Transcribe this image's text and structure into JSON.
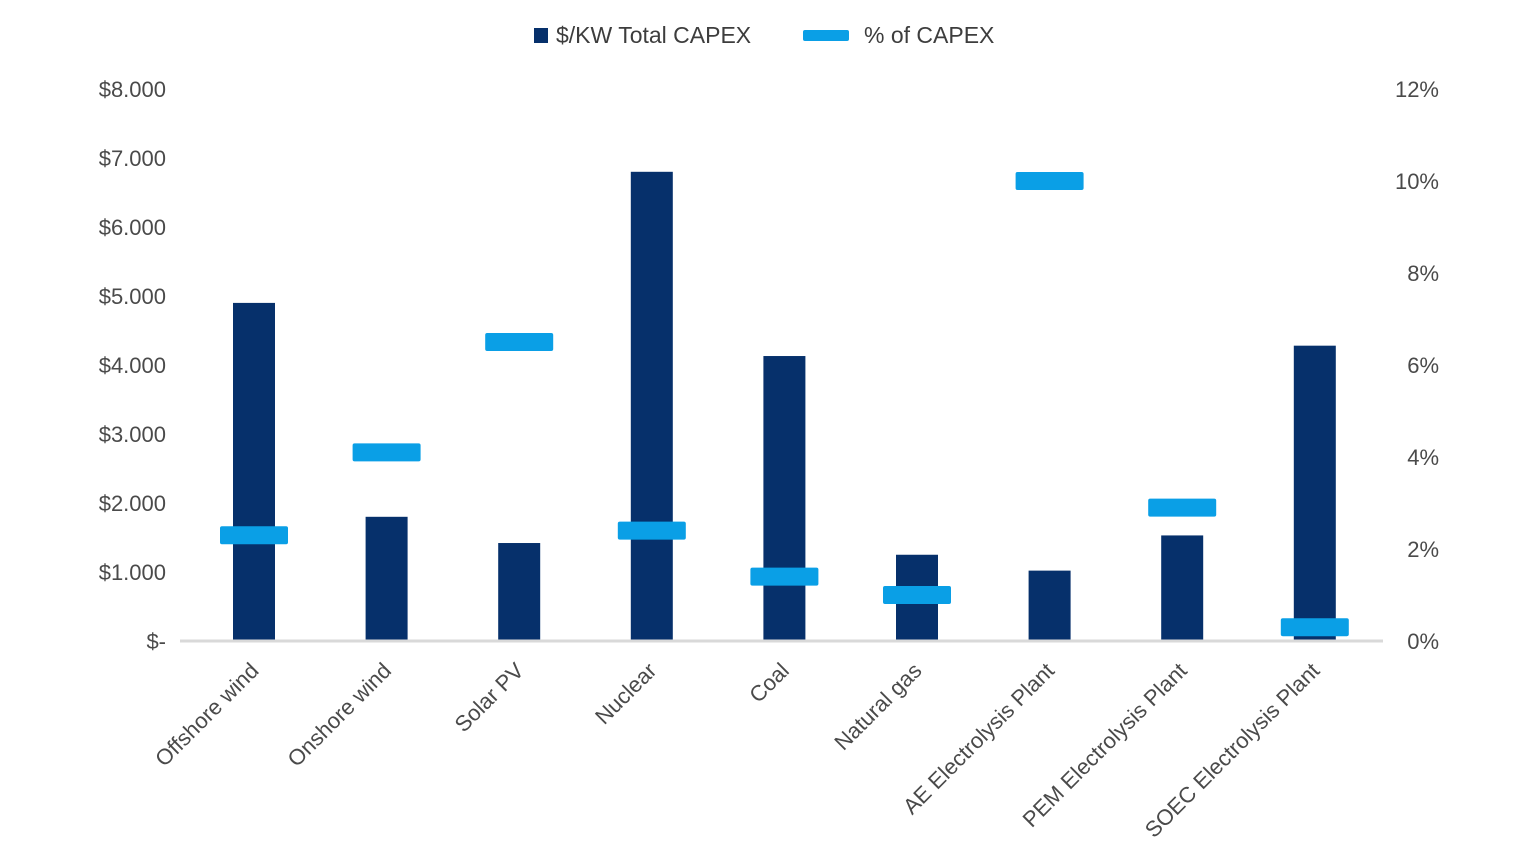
{
  "chart_data": {
    "type": "bar",
    "categories": [
      "Offshore wind",
      "Onshore wind",
      "Solar PV",
      "Nuclear",
      "Coal",
      "Natural gas",
      "AE Electrolysis Plant",
      "PEM Electrolysis Plant",
      "SOEC Electrolysis Plant"
    ],
    "series": [
      {
        "name": "$/KW Total CAPEX",
        "type": "bar",
        "axis": "left",
        "color": "#06306b",
        "values": [
          4900,
          1800,
          1420,
          6800,
          4130,
          1250,
          1020,
          1530,
          4280
        ]
      },
      {
        "name": "% of CAPEX",
        "type": "marker",
        "axis": "right",
        "color": "#0a9fe6",
        "values": [
          2.3,
          4.1,
          6.5,
          2.4,
          1.4,
          1.0,
          10.0,
          2.9,
          0.3
        ]
      }
    ],
    "y_left": {
      "ylim": [
        0,
        8000
      ],
      "ticks": [
        0,
        1000,
        2000,
        3000,
        4000,
        5000,
        6000,
        7000,
        8000
      ],
      "tick_labels": [
        "$-",
        "$1.000",
        "$2.000",
        "$3.000",
        "$4.000",
        "$5.000",
        "$6.000",
        "$7.000",
        "$8.000"
      ]
    },
    "y_right": {
      "ylim": [
        0,
        12
      ],
      "ticks": [
        0,
        2,
        4,
        6,
        8,
        10,
        12
      ],
      "tick_labels": [
        "0%",
        "2%",
        "4%",
        "6%",
        "8%",
        "10%",
        "12%"
      ]
    },
    "legend": {
      "position": "top-center",
      "entries": [
        "$/KW Total CAPEX",
        "% of CAPEX"
      ]
    },
    "grid": false,
    "title": "",
    "xlabel": "",
    "ylabel": ""
  }
}
